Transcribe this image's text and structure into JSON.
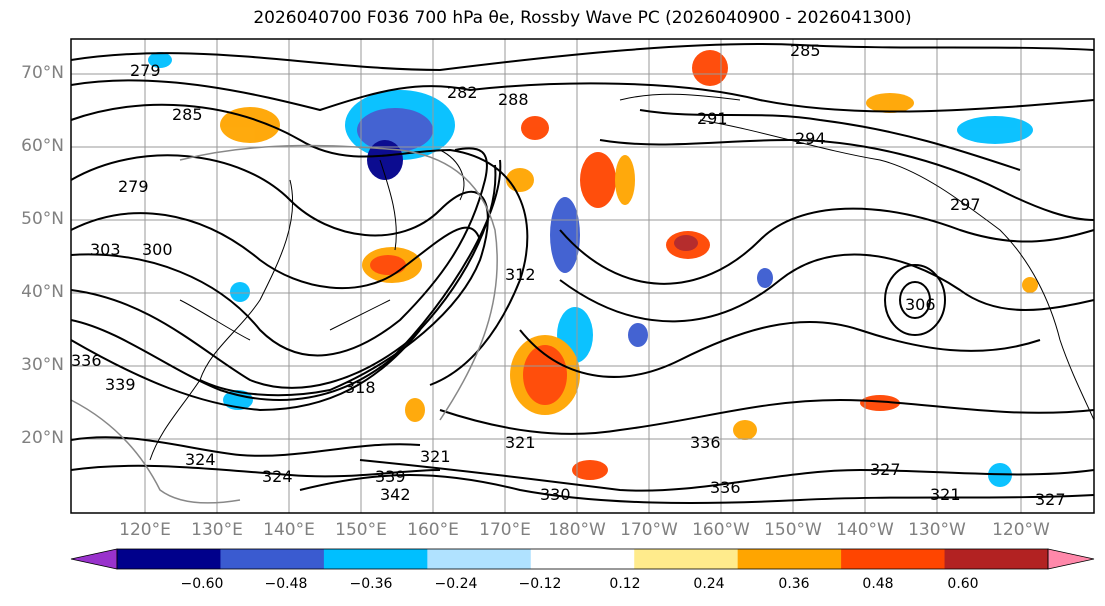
{
  "title": "2026040700 F036 700 hPa θe, Rossby Wave PC (2026040900 - 2026041300)",
  "map": {
    "latitude_labels": [
      "70°N",
      "60°N",
      "50°N",
      "40°N",
      "30°N",
      "20°N"
    ],
    "longitude_labels": [
      "120°E",
      "130°E",
      "140°E",
      "150°E",
      "160°E",
      "170°E",
      "180°W",
      "170°W",
      "160°W",
      "150°W",
      "140°W",
      "130°W",
      "120°W"
    ],
    "contour_labels": [
      "279",
      "285",
      "282",
      "288",
      "285",
      "291",
      "279",
      "294",
      "297",
      "303",
      "300",
      "312",
      "306",
      "336",
      "339",
      "318",
      "321",
      "324",
      "324",
      "321",
      "339",
      "342",
      "330",
      "336",
      "327",
      "321",
      "327",
      "336"
    ],
    "gridlines": true
  },
  "colorbar": {
    "ticks": [
      "−0.60",
      "−0.48",
      "−0.36",
      "−0.24",
      "−0.12",
      "0.12",
      "0.24",
      "0.36",
      "0.48",
      "0.60"
    ],
    "colors": [
      "#9932cc",
      "#00008b",
      "#3a5bd0",
      "#00bfff",
      "#b0e2ff",
      "#ffffff",
      "#ffeb8c",
      "#ffa500",
      "#ff4500",
      "#b22222",
      "#ff88aa"
    ],
    "extend": "both"
  }
}
